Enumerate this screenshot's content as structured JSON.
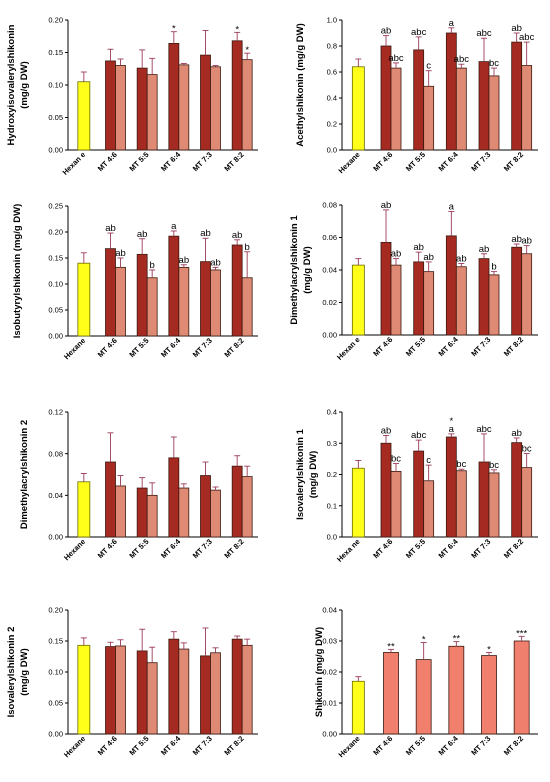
{
  "colors": {
    "hexane": "#ffff1a",
    "dark": "#a52a22",
    "light": "#de8a74",
    "shikonin": "#f07f6e",
    "error": "#9b3a56"
  },
  "chart_data": [
    {
      "type": "bar",
      "title": "",
      "xlabel": "",
      "ylabel": "Hydroxyisovalerylshikonin (mg/g DW)",
      "ylim": [
        0,
        0.2
      ],
      "yticks": [
        "0.00",
        "0.05",
        "0.10",
        "0.15",
        "0.20"
      ],
      "categories": [
        "Hexane",
        "MT 4:6",
        "MT 5:5",
        "MT 6:4",
        "MT 7:3",
        "MT 8:2"
      ],
      "category_labels": [
        "Hexan  e",
        "MT 4:6",
        "MT 5:5",
        "MT 6:4",
        "MT 7:3",
        "MT 8:2"
      ],
      "bars": [
        {
          "cat": 0,
          "kind": "hexane",
          "value": 0.105,
          "err": 0.015,
          "label": ""
        },
        {
          "cat": 1,
          "kind": "dark",
          "value": 0.137,
          "err": 0.018,
          "label": ""
        },
        {
          "cat": 1,
          "kind": "light",
          "value": 0.13,
          "err": 0.01,
          "label": ""
        },
        {
          "cat": 2,
          "kind": "dark",
          "value": 0.126,
          "err": 0.028,
          "label": ""
        },
        {
          "cat": 2,
          "kind": "light",
          "value": 0.116,
          "err": 0.025,
          "label": ""
        },
        {
          "cat": 3,
          "kind": "dark",
          "value": 0.164,
          "err": 0.018,
          "label": "*"
        },
        {
          "cat": 3,
          "kind": "light",
          "value": 0.131,
          "err": 0.002,
          "label": ""
        },
        {
          "cat": 4,
          "kind": "dark",
          "value": 0.146,
          "err": 0.038,
          "label": ""
        },
        {
          "cat": 4,
          "kind": "light",
          "value": 0.128,
          "err": 0.002,
          "label": ""
        },
        {
          "cat": 5,
          "kind": "dark",
          "value": 0.168,
          "err": 0.013,
          "label": "*"
        },
        {
          "cat": 5,
          "kind": "light",
          "value": 0.139,
          "err": 0.01,
          "label": "*"
        }
      ]
    },
    {
      "type": "bar",
      "title": "",
      "xlabel": "",
      "ylabel": "Acethylshikonin (mg/g DW)",
      "ylim": [
        0,
        1.0
      ],
      "yticks": [
        "0.0",
        "0.2",
        "0.4",
        "0.6",
        "0.8",
        "1.0"
      ],
      "categories": [
        "Hexane",
        "MT 4:6",
        "MT 5:5",
        "MT 6:4",
        "MT 7:3",
        "MT 8:2"
      ],
      "category_labels": [
        "Hexane",
        "MT 4:6",
        "MT 5:5",
        "MT 6:4",
        "MT 7:3",
        "MT 8:2"
      ],
      "bars": [
        {
          "cat": 0,
          "kind": "hexane",
          "value": 0.64,
          "err": 0.06,
          "label": ""
        },
        {
          "cat": 1,
          "kind": "dark",
          "value": 0.8,
          "err": 0.08,
          "label": "ab"
        },
        {
          "cat": 1,
          "kind": "light",
          "value": 0.63,
          "err": 0.04,
          "label": "abc"
        },
        {
          "cat": 2,
          "kind": "dark",
          "value": 0.77,
          "err": 0.1,
          "label": "abc"
        },
        {
          "cat": 2,
          "kind": "light",
          "value": 0.49,
          "err": 0.12,
          "label": "c"
        },
        {
          "cat": 3,
          "kind": "dark",
          "value": 0.9,
          "err": 0.04,
          "label": "a"
        },
        {
          "cat": 3,
          "kind": "light",
          "value": 0.63,
          "err": 0.03,
          "label": "abc"
        },
        {
          "cat": 4,
          "kind": "dark",
          "value": 0.68,
          "err": 0.18,
          "label": "abc"
        },
        {
          "cat": 4,
          "kind": "light",
          "value": 0.57,
          "err": 0.06,
          "label": "bc"
        },
        {
          "cat": 5,
          "kind": "dark",
          "value": 0.83,
          "err": 0.07,
          "label": "ab"
        },
        {
          "cat": 5,
          "kind": "light",
          "value": 0.65,
          "err": 0.18,
          "label": "abc"
        }
      ]
    },
    {
      "type": "bar",
      "title": "",
      "xlabel": "",
      "ylabel": "Isobutyrylshikonin (mg/g DW)",
      "ylim": [
        0,
        0.25
      ],
      "yticks": [
        "0.00",
        "0.05",
        "0.10",
        "0.15",
        "0.20",
        "0.25"
      ],
      "categories": [
        "Hexane",
        "MT 4:6",
        "MT 5:5",
        "MT 6:4",
        "MT 7:3",
        "MT 8:2"
      ],
      "category_labels": [
        "Hexane",
        "MT 4:6",
        "MT 5:5",
        "MT 6:4",
        "MT 7:3",
        "MT 8:2"
      ],
      "bars": [
        {
          "cat": 0,
          "kind": "hexane",
          "value": 0.14,
          "err": 0.02,
          "label": ""
        },
        {
          "cat": 1,
          "kind": "dark",
          "value": 0.168,
          "err": 0.03,
          "label": "ab"
        },
        {
          "cat": 1,
          "kind": "light",
          "value": 0.132,
          "err": 0.018,
          "label": "ab"
        },
        {
          "cat": 2,
          "kind": "dark",
          "value": 0.157,
          "err": 0.03,
          "label": "ab"
        },
        {
          "cat": 2,
          "kind": "light",
          "value": 0.112,
          "err": 0.015,
          "label": "b"
        },
        {
          "cat": 3,
          "kind": "dark",
          "value": 0.192,
          "err": 0.01,
          "label": "a"
        },
        {
          "cat": 3,
          "kind": "light",
          "value": 0.132,
          "err": 0.005,
          "label": "ab"
        },
        {
          "cat": 4,
          "kind": "dark",
          "value": 0.143,
          "err": 0.045,
          "label": "ab"
        },
        {
          "cat": 4,
          "kind": "light",
          "value": 0.127,
          "err": 0.005,
          "label": "ab"
        },
        {
          "cat": 5,
          "kind": "dark",
          "value": 0.175,
          "err": 0.01,
          "label": "ab"
        },
        {
          "cat": 5,
          "kind": "light",
          "value": 0.112,
          "err": 0.05,
          "label": "b"
        }
      ]
    },
    {
      "type": "bar",
      "title": "",
      "xlabel": "",
      "ylabel": "Dimethylacrylshikonin 1 (mg/g DW)",
      "ylim": [
        0,
        0.08
      ],
      "yticks": [
        "0.00",
        "0.02",
        "0.04",
        "0.06",
        "0.08"
      ],
      "categories": [
        "Hexane",
        "MT 4:6",
        "MT 5:5",
        "MT 6:4",
        "MT 7:3",
        "MT 8:2"
      ],
      "category_labels": [
        "Hexan  e",
        "MT 4:6",
        "MT 5:5",
        "MT 6:4",
        "MT 7:3",
        "MT 8:2"
      ],
      "bars": [
        {
          "cat": 0,
          "kind": "hexane",
          "value": 0.043,
          "err": 0.004,
          "label": ""
        },
        {
          "cat": 1,
          "kind": "dark",
          "value": 0.057,
          "err": 0.02,
          "label": "ab"
        },
        {
          "cat": 1,
          "kind": "light",
          "value": 0.043,
          "err": 0.004,
          "label": "ab"
        },
        {
          "cat": 2,
          "kind": "dark",
          "value": 0.045,
          "err": 0.006,
          "label": "ab"
        },
        {
          "cat": 2,
          "kind": "light",
          "value": 0.039,
          "err": 0.006,
          "label": "ab"
        },
        {
          "cat": 3,
          "kind": "dark",
          "value": 0.061,
          "err": 0.015,
          "label": "a"
        },
        {
          "cat": 3,
          "kind": "light",
          "value": 0.042,
          "err": 0.002,
          "label": "ab"
        },
        {
          "cat": 4,
          "kind": "dark",
          "value": 0.047,
          "err": 0.003,
          "label": "ab"
        },
        {
          "cat": 4,
          "kind": "light",
          "value": 0.037,
          "err": 0.002,
          "label": "b"
        },
        {
          "cat": 5,
          "kind": "dark",
          "value": 0.054,
          "err": 0.002,
          "label": "ab"
        },
        {
          "cat": 5,
          "kind": "light",
          "value": 0.05,
          "err": 0.005,
          "label": "ab"
        }
      ]
    },
    {
      "type": "bar",
      "title": "",
      "xlabel": "",
      "ylabel": "Dimethylacrylshikonin 2",
      "ylim": [
        0,
        0.12
      ],
      "yticks": [
        "0.00",
        "0.04",
        "0.08",
        "0.12"
      ],
      "categories": [
        "Hexane",
        "MT 4:6",
        "MT 5:5",
        "MT 6:4",
        "MT 7:3",
        "MT 8:2"
      ],
      "category_labels": [
        "Hexane",
        "MT 4:6",
        "MT 5:5",
        "MT 6:4",
        "MT 7:3",
        "MT 8:2"
      ],
      "bars": [
        {
          "cat": 0,
          "kind": "hexane",
          "value": 0.053,
          "err": 0.008,
          "label": ""
        },
        {
          "cat": 1,
          "kind": "dark",
          "value": 0.072,
          "err": 0.028,
          "label": ""
        },
        {
          "cat": 1,
          "kind": "light",
          "value": 0.049,
          "err": 0.01,
          "label": ""
        },
        {
          "cat": 2,
          "kind": "dark",
          "value": 0.047,
          "err": 0.01,
          "label": ""
        },
        {
          "cat": 2,
          "kind": "light",
          "value": 0.04,
          "err": 0.012,
          "label": ""
        },
        {
          "cat": 3,
          "kind": "dark",
          "value": 0.076,
          "err": 0.02,
          "label": ""
        },
        {
          "cat": 3,
          "kind": "light",
          "value": 0.047,
          "err": 0.004,
          "label": ""
        },
        {
          "cat": 4,
          "kind": "dark",
          "value": 0.059,
          "err": 0.013,
          "label": ""
        },
        {
          "cat": 4,
          "kind": "light",
          "value": 0.045,
          "err": 0.003,
          "label": ""
        },
        {
          "cat": 5,
          "kind": "dark",
          "value": 0.068,
          "err": 0.01,
          "label": ""
        },
        {
          "cat": 5,
          "kind": "light",
          "value": 0.058,
          "err": 0.01,
          "label": ""
        }
      ]
    },
    {
      "type": "bar",
      "title": "",
      "xlabel": "",
      "ylabel": "Isovalerylshikonin 1 (mg/g DW)",
      "ylim": [
        0,
        0.4
      ],
      "yticks": [
        "0.0",
        "0.1",
        "0.2",
        "0.3",
        "0.4"
      ],
      "categories": [
        "Hexane",
        "MT 4:6",
        "MT 5:5",
        "MT 6:4",
        "MT 7:3",
        "MT 8:2"
      ],
      "category_labels": [
        "Hexa ne",
        "MT 4:6",
        "MT 5:5",
        "MT 6:4",
        "MT 7:3",
        "MT 8:2"
      ],
      "bars": [
        {
          "cat": 0,
          "kind": "hexane",
          "value": 0.22,
          "err": 0.025,
          "label": ""
        },
        {
          "cat": 1,
          "kind": "dark",
          "value": 0.3,
          "err": 0.025,
          "label": "ab"
        },
        {
          "cat": 1,
          "kind": "light",
          "value": 0.21,
          "err": 0.025,
          "label": "bc"
        },
        {
          "cat": 2,
          "kind": "dark",
          "value": 0.275,
          "err": 0.035,
          "label": "abc"
        },
        {
          "cat": 2,
          "kind": "light",
          "value": 0.18,
          "err": 0.05,
          "label": "c"
        },
        {
          "cat": 3,
          "kind": "dark",
          "value": 0.32,
          "err": 0.01,
          "label": "a",
          "extra": "*"
        },
        {
          "cat": 3,
          "kind": "light",
          "value": 0.212,
          "err": 0.005,
          "label": "bc"
        },
        {
          "cat": 4,
          "kind": "dark",
          "value": 0.24,
          "err": 0.09,
          "label": "abc"
        },
        {
          "cat": 4,
          "kind": "light",
          "value": 0.205,
          "err": 0.01,
          "label": "bc"
        },
        {
          "cat": 5,
          "kind": "dark",
          "value": 0.302,
          "err": 0.015,
          "label": "ab"
        },
        {
          "cat": 5,
          "kind": "light",
          "value": 0.222,
          "err": 0.045,
          "label": "bc"
        }
      ]
    },
    {
      "type": "bar",
      "title": "",
      "xlabel": "",
      "ylabel": "Isovalerylshikonin 2 (mg/g DW)",
      "ylim": [
        0,
        0.2
      ],
      "yticks": [
        "0.00",
        "0.05",
        "0.10",
        "0.15",
        "0.20"
      ],
      "categories": [
        "Hexane",
        "MT 4:6",
        "MT 5:5",
        "MT 6:4",
        "MT 7:3",
        "MT 8:2"
      ],
      "category_labels": [
        "Hexane",
        "MT 4:6",
        "MT 5:5",
        "MT 6:4",
        "MT 7:3",
        "MT 8:2"
      ],
      "bars": [
        {
          "cat": 0,
          "kind": "hexane",
          "value": 0.143,
          "err": 0.012,
          "label": ""
        },
        {
          "cat": 1,
          "kind": "dark",
          "value": 0.141,
          "err": 0.007,
          "label": ""
        },
        {
          "cat": 1,
          "kind": "light",
          "value": 0.142,
          "err": 0.01,
          "label": ""
        },
        {
          "cat": 2,
          "kind": "dark",
          "value": 0.134,
          "err": 0.035,
          "label": ""
        },
        {
          "cat": 2,
          "kind": "light",
          "value": 0.115,
          "err": 0.025,
          "label": ""
        },
        {
          "cat": 3,
          "kind": "dark",
          "value": 0.153,
          "err": 0.012,
          "label": ""
        },
        {
          "cat": 3,
          "kind": "light",
          "value": 0.137,
          "err": 0.01,
          "label": ""
        },
        {
          "cat": 4,
          "kind": "dark",
          "value": 0.126,
          "err": 0.045,
          "label": ""
        },
        {
          "cat": 4,
          "kind": "light",
          "value": 0.131,
          "err": 0.008,
          "label": ""
        },
        {
          "cat": 5,
          "kind": "dark",
          "value": 0.153,
          "err": 0.005,
          "label": ""
        },
        {
          "cat": 5,
          "kind": "light",
          "value": 0.143,
          "err": 0.01,
          "label": ""
        }
      ]
    },
    {
      "type": "bar",
      "title": "",
      "xlabel": "",
      "ylabel": "Shikonin (mg/g DW)",
      "ylim": [
        0,
        0.04
      ],
      "yticks": [
        "0.00",
        "0.01",
        "0.02",
        "0.03",
        "0.04"
      ],
      "categories": [
        "Hexane",
        "MT 4:6",
        "MT 5:5",
        "MT 6:4",
        "MT 7:3",
        "MT 8:2"
      ],
      "category_labels": [
        "Hexane",
        "MT 4:6",
        "MT 5:5",
        "MT 6:4",
        "MT 7:3",
        "MT 8:2"
      ],
      "bars": [
        {
          "cat": 0,
          "kind": "hexane",
          "value": 0.017,
          "err": 0.0015,
          "label": ""
        },
        {
          "cat": 1,
          "kind": "shikonin",
          "value": 0.0263,
          "err": 0.001,
          "label": "**"
        },
        {
          "cat": 2,
          "kind": "shikonin",
          "value": 0.024,
          "err": 0.0055,
          "label": "*"
        },
        {
          "cat": 3,
          "kind": "shikonin",
          "value": 0.0283,
          "err": 0.0015,
          "label": "**"
        },
        {
          "cat": 4,
          "kind": "shikonin",
          "value": 0.0253,
          "err": 0.001,
          "label": "*"
        },
        {
          "cat": 5,
          "kind": "shikonin",
          "value": 0.03,
          "err": 0.0015,
          "label": "***"
        }
      ]
    }
  ]
}
